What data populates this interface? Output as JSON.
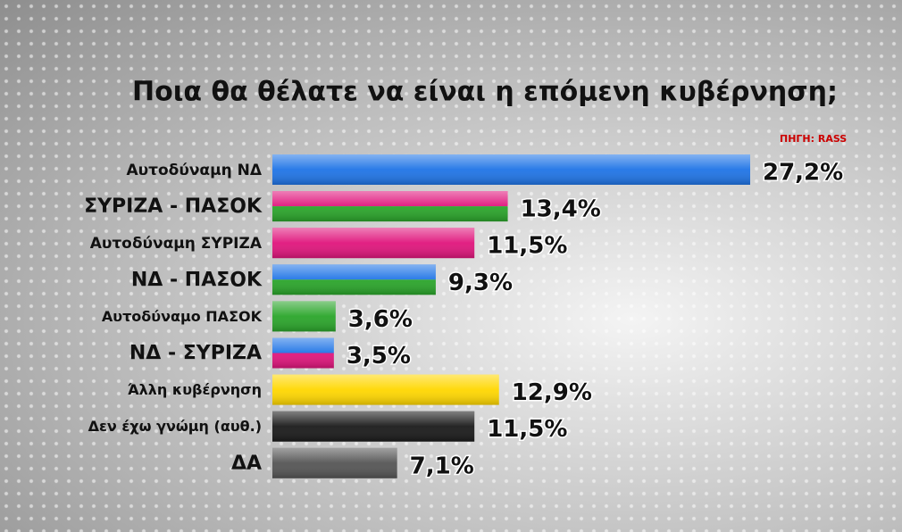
{
  "chart_data": {
    "type": "bar",
    "orientation": "horizontal",
    "title": "Ποια θα θέλατε να είναι η επόμενη κυβέρνηση;",
    "source": "ΠΗΓΗ: RASS",
    "categories": [
      "Αυτοδύναμη ΝΔ",
      "ΣΥΡΙΖΑ - ΠΑΣΟΚ",
      "Αυτοδύναμη ΣΥΡΙΖΑ",
      "ΝΔ - ΠΑΣΟΚ",
      "Αυτοδύναμο ΠΑΣΟΚ",
      "ΝΔ - ΣΥΡΙΖΑ",
      "Άλλη κυβέρνηση",
      "Δεν έχω γνώμη (αυθ.)",
      "ΔΑ"
    ],
    "values": [
      27.2,
      13.4,
      11.5,
      9.3,
      3.6,
      3.5,
      12.9,
      11.5,
      7.1
    ],
    "value_labels": [
      "27,2%",
      "13,4%",
      "11,5%",
      "9,3%",
      "3,6%",
      "3,5%",
      "12,9%",
      "11,5%",
      "7,1%"
    ],
    "colors": [
      [
        "#1f74e6"
      ],
      [
        "#e0157c",
        "#2aa52a"
      ],
      [
        "#e0157c"
      ],
      [
        "#1f74e6",
        "#2aa52a"
      ],
      [
        "#2aa52a"
      ],
      [
        "#1f74e6",
        "#e0157c"
      ],
      [
        "#ffd700"
      ],
      [
        "#1a1a1a"
      ],
      [
        "#555555"
      ]
    ]
  }
}
